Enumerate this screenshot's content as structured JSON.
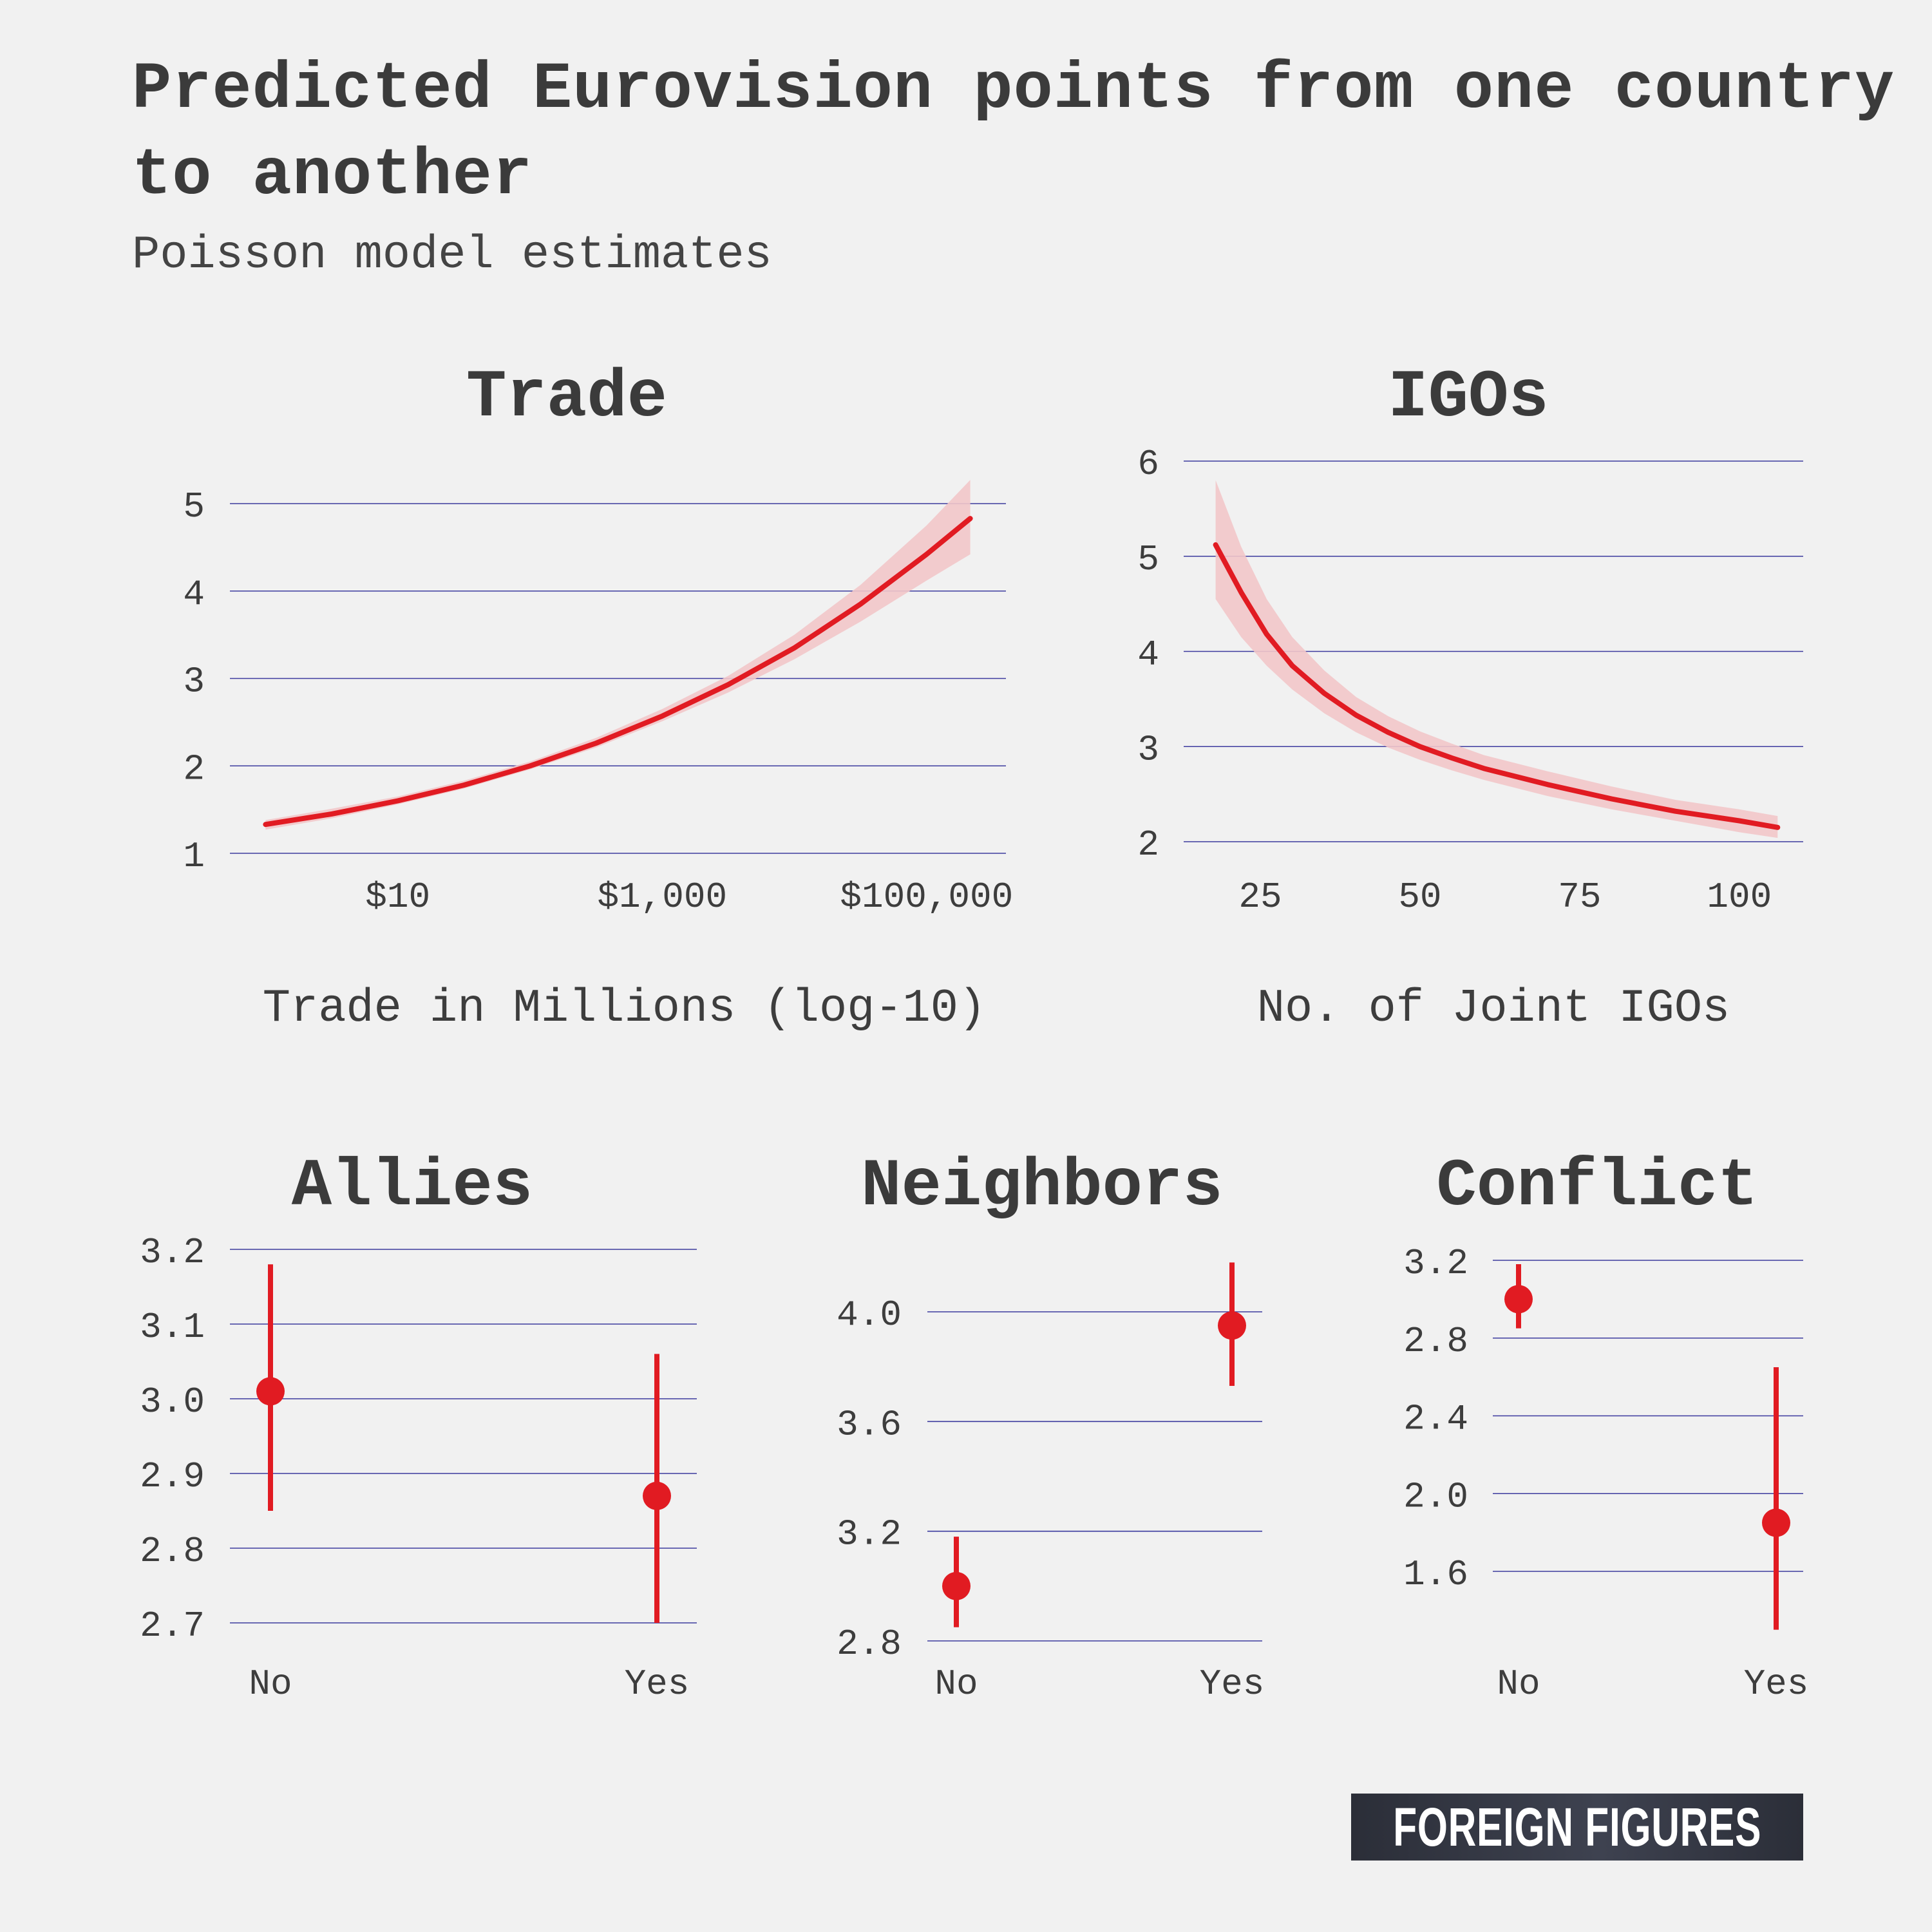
{
  "title": "Predicted Eurovision points from one country to another",
  "subtitle": "Poisson model estimates",
  "logo": "FOREIGN FIGURES",
  "colors": {
    "line": "#e11b22",
    "band": "#f2c6c9",
    "grid": "#3c3a9e",
    "text": "#3d3d3d",
    "background": "#f1f1f1"
  },
  "chart_data": [
    {
      "id": "trade",
      "type": "line",
      "title": "Trade",
      "xlabel": "Trade in Millions (log-10)",
      "ylabel": "",
      "x_scale": "log10",
      "xlim": [
        -0.27,
        5.6
      ],
      "ylim": [
        1,
        5
      ],
      "yticks": [
        1,
        2,
        3,
        4,
        5
      ],
      "yticklabels": [
        "1",
        "2",
        "3",
        "4",
        "5"
      ],
      "xticks": [
        1,
        3,
        5
      ],
      "xticklabels": [
        "$10",
        "$1,000",
        "$100,000"
      ],
      "x": [
        0,
        0.5,
        1,
        1.5,
        2,
        2.5,
        3,
        3.5,
        4,
        4.5,
        5,
        5.33
      ],
      "y": [
        1.33,
        1.45,
        1.6,
        1.78,
        2.0,
        2.26,
        2.57,
        2.93,
        3.35,
        3.85,
        4.42,
        4.83
      ],
      "lower": [
        1.27,
        1.4,
        1.56,
        1.74,
        1.96,
        2.21,
        2.51,
        2.84,
        3.22,
        3.65,
        4.12,
        4.42
      ],
      "upper": [
        1.38,
        1.51,
        1.65,
        1.83,
        2.05,
        2.32,
        2.65,
        3.03,
        3.5,
        4.07,
        4.75,
        5.27
      ],
      "grid": true
    },
    {
      "id": "igos",
      "type": "line",
      "title": "IGOs",
      "xlabel": "No. of Joint IGOs",
      "ylabel": "",
      "xlim": [
        13,
        110
      ],
      "ylim": [
        2,
        6
      ],
      "yticks": [
        2,
        3,
        4,
        5,
        6
      ],
      "yticklabels": [
        "2",
        "3",
        "4",
        "5",
        "6"
      ],
      "xticks": [
        25,
        50,
        75,
        100
      ],
      "xticklabels": [
        "25",
        "50",
        "75",
        "100"
      ],
      "x": [
        18,
        22,
        26,
        30,
        35,
        40,
        45,
        50,
        55,
        60,
        70,
        80,
        90,
        100,
        106
      ],
      "y": [
        5.12,
        4.62,
        4.18,
        3.85,
        3.56,
        3.33,
        3.15,
        3.0,
        2.88,
        2.77,
        2.6,
        2.45,
        2.32,
        2.22,
        2.15
      ],
      "lower": [
        4.55,
        4.15,
        3.85,
        3.6,
        3.35,
        3.15,
        2.99,
        2.86,
        2.75,
        2.65,
        2.48,
        2.34,
        2.22,
        2.1,
        2.04
      ],
      "upper": [
        5.8,
        5.1,
        4.55,
        4.15,
        3.8,
        3.52,
        3.32,
        3.16,
        3.03,
        2.91,
        2.74,
        2.58,
        2.44,
        2.34,
        2.27
      ],
      "grid": true
    },
    {
      "id": "allies",
      "type": "pointrange",
      "title": "Allies",
      "categories": [
        "No",
        "Yes"
      ],
      "values": [
        3.01,
        2.87
      ],
      "lower": [
        2.85,
        2.7
      ],
      "upper": [
        3.18,
        3.06
      ],
      "ylim": [
        2.7,
        3.2
      ],
      "yticks": [
        2.7,
        2.8,
        2.9,
        3.0,
        3.1,
        3.2
      ],
      "yticklabels": [
        "2.7",
        "2.8",
        "2.9",
        "3.0",
        "3.1",
        "3.2"
      ],
      "grid": true
    },
    {
      "id": "neighbors",
      "type": "pointrange",
      "title": "Neighbors",
      "categories": [
        "No",
        "Yes"
      ],
      "values": [
        3.0,
        3.95
      ],
      "lower": [
        2.85,
        3.73
      ],
      "upper": [
        3.18,
        4.18
      ],
      "ylim": [
        2.8,
        4.0
      ],
      "yticks": [
        2.8,
        3.2,
        3.6,
        4.0
      ],
      "yticklabels": [
        "2.8",
        "3.2",
        "3.6",
        "4.0"
      ],
      "grid": true
    },
    {
      "id": "conflict",
      "type": "pointrange",
      "title": "Conflict",
      "categories": [
        "No",
        "Yes"
      ],
      "values": [
        3.0,
        1.85
      ],
      "lower": [
        2.85,
        1.3
      ],
      "upper": [
        3.18,
        2.65
      ],
      "ylim": [
        1.6,
        3.2
      ],
      "yticks": [
        1.6,
        2.0,
        2.4,
        2.8,
        3.2
      ],
      "yticklabels": [
        "1.6",
        "2.0",
        "2.4",
        "2.8",
        "3.2"
      ],
      "grid": true
    }
  ]
}
